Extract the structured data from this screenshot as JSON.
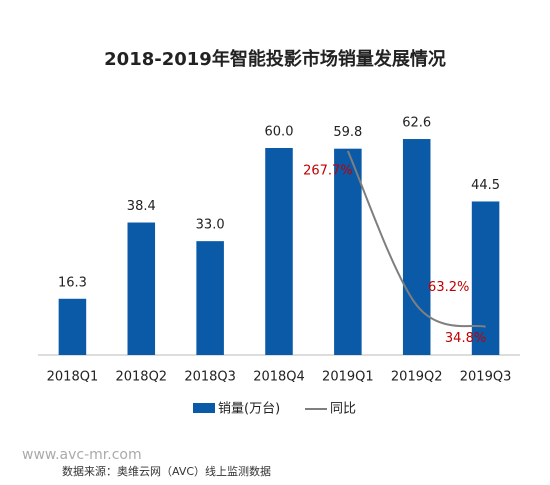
{
  "chart_data": {
    "type": "bar",
    "title": "2018-2019年智能投影市场销量发展情况",
    "categories": [
      "2018Q1",
      "2018Q2",
      "2018Q3",
      "2018Q4",
      "2019Q1",
      "2019Q2",
      "2019Q3"
    ],
    "series": [
      {
        "name": "销量(万台)",
        "color": "#0b5aa8",
        "values": [
          16.3,
          38.4,
          33.0,
          60.0,
          59.8,
          62.6,
          44.5
        ],
        "value_labels": [
          "16.3",
          "38.4",
          "33.0",
          "60.0",
          "59.8",
          "62.6",
          "44.5"
        ]
      },
      {
        "name": "同比",
        "type": "line",
        "axis": "y2",
        "color": "#7f7f7f",
        "label_color": "#c00000",
        "values": [
          null,
          null,
          null,
          null,
          267.7,
          63.2,
          34.8
        ],
        "value_labels": [
          null,
          null,
          null,
          null,
          "267.7%",
          "63.2%",
          "34.8%"
        ]
      }
    ],
    "ylim": [
      0,
      70
    ],
    "y2lim": [
      0,
      320
    ]
  },
  "watermark": "www.avc-mr.com",
  "source": "数据来源：奥维云网（AVC）线上监测数据"
}
